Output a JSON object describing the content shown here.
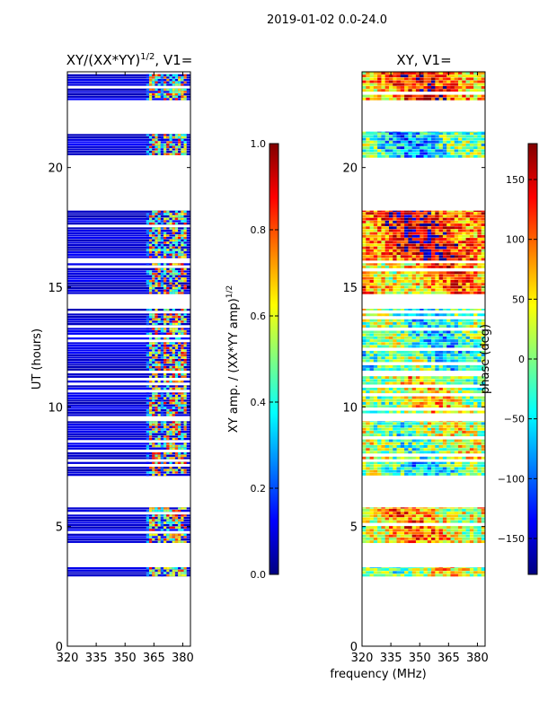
{
  "figure": {
    "suptitle": "2019-01-02 0.0-24.0",
    "xlabel_shared": "frequency (MHz)"
  },
  "chart_data": [
    {
      "type": "heatmap",
      "id": "amplitude",
      "title_main": "XY/(XX*YY)",
      "title_exp": "1/2",
      "title_tail": ", V1=",
      "xlabel": "",
      "ylabel": "UT (hours)",
      "xlim": [
        320,
        384
      ],
      "ylim": [
        0,
        24
      ],
      "xticks": [
        320,
        335,
        350,
        365,
        380
      ],
      "yticks": [
        0,
        5,
        10,
        15,
        20
      ],
      "colorbar": {
        "label_main": "XY amp. / (XX*YY amp)",
        "label_exp": "1/2",
        "range": [
          0.0,
          1.0
        ],
        "ticks": [
          0.0,
          0.2,
          0.4,
          0.6,
          0.8,
          1.0
        ],
        "tick_labels": [
          "0.0",
          "0.2",
          "0.4",
          "0.6",
          "0.8",
          "1.0"
        ],
        "colormap": "jet"
      },
      "data_hour_bands": [
        [
          2.9,
          3.3
        ],
        [
          4.3,
          5.8
        ],
        [
          7.0,
          7.7
        ],
        [
          7.8,
          9.4
        ],
        [
          9.6,
          11.4
        ],
        [
          11.5,
          14.1
        ],
        [
          14.7,
          16.0
        ],
        [
          16.1,
          18.2
        ],
        [
          20.4,
          21.5
        ],
        [
          22.8,
          24.0
        ]
      ],
      "rfi_channels_mhz": [
        363.5,
        366.5,
        370.5,
        373.5,
        377.0,
        379.5
      ],
      "active_band_mhz": [
        361,
        382
      ],
      "background_level": 0.05
    },
    {
      "type": "heatmap",
      "id": "phase",
      "title_main": "XY, V1=",
      "xlabel": "",
      "ylabel": "",
      "xlim": [
        320,
        384
      ],
      "ylim": [
        0,
        24
      ],
      "xticks": [
        320,
        335,
        350,
        365,
        380
      ],
      "yticks": [
        0,
        5,
        10,
        15,
        20
      ],
      "colorbar": {
        "label": "phase (deg)",
        "range": [
          -180,
          180
        ],
        "ticks": [
          -150,
          -100,
          -50,
          0,
          50,
          100,
          150
        ],
        "tick_labels": [
          "−150",
          "−100",
          "−50",
          "0",
          "50",
          "100",
          "150"
        ],
        "colormap": "jet"
      },
      "data_hour_bands": [
        [
          2.9,
          3.3
        ],
        [
          4.3,
          5.8
        ],
        [
          7.0,
          7.7
        ],
        [
          7.8,
          9.4
        ],
        [
          9.6,
          11.4
        ],
        [
          11.5,
          14.1
        ],
        [
          14.7,
          16.0
        ],
        [
          16.1,
          18.2
        ],
        [
          20.4,
          21.5
        ],
        [
          22.8,
          24.0
        ]
      ],
      "band_phase_deg": [
        20,
        60,
        -30,
        10,
        30,
        -20,
        70,
        120,
        -40,
        100
      ]
    }
  ]
}
